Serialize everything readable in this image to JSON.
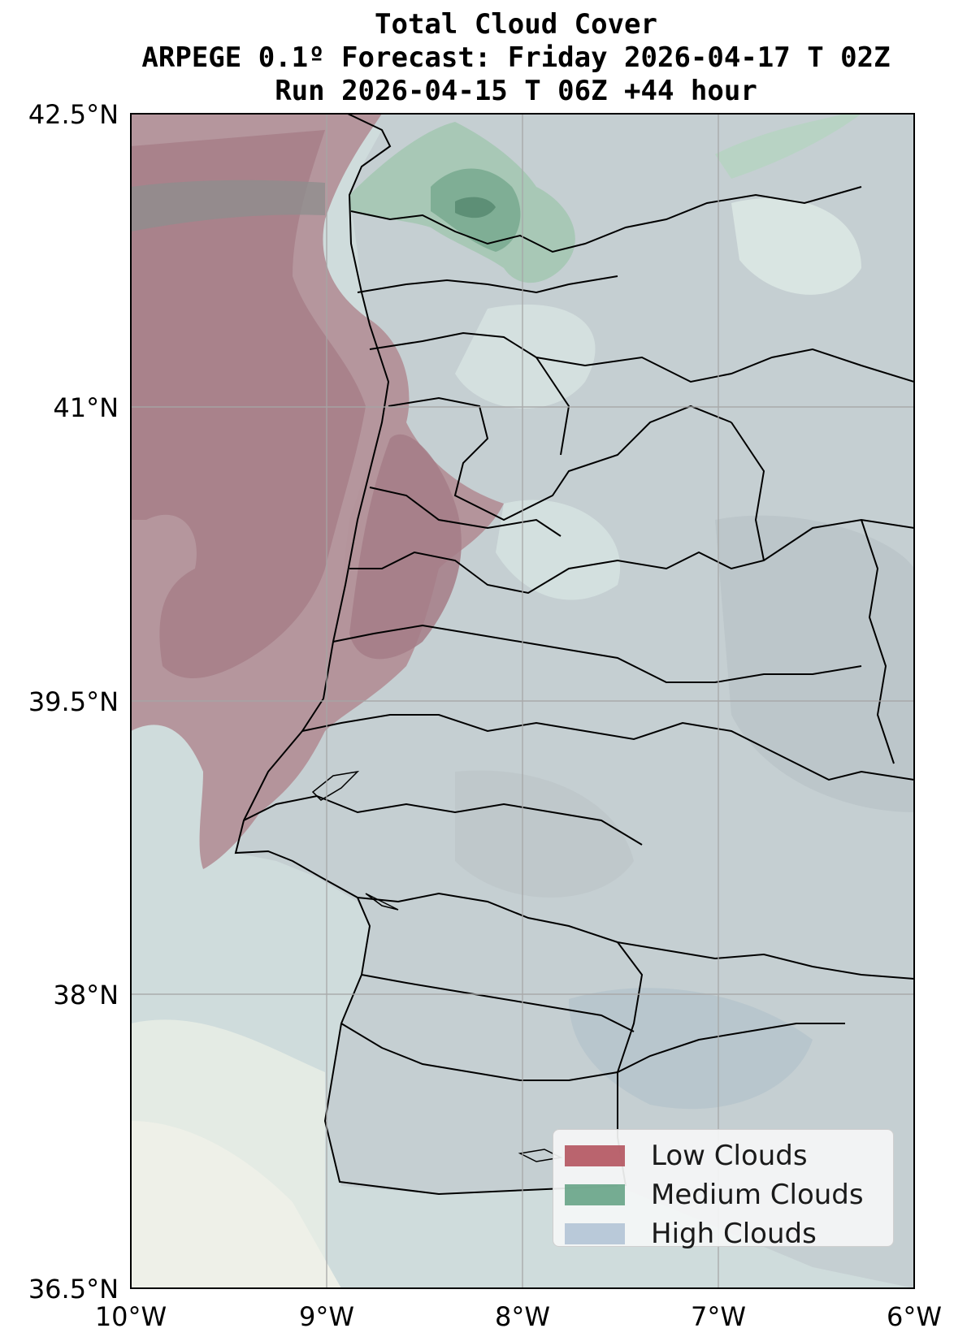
{
  "title": {
    "line1": "Total Cloud Cover",
    "line2": "ARPEGE 0.1º Forecast: Friday 2026-04-17 T 02Z",
    "line3": "Run 2026-04-15 T 06Z +44 hour"
  },
  "map": {
    "lon_range": [
      -10,
      -6
    ],
    "lat_range": [
      36.5,
      42.5
    ],
    "x_ticks": [
      {
        "lon": -10,
        "label": "10°W"
      },
      {
        "lon": -9,
        "label": "9°W"
      },
      {
        "lon": -8,
        "label": "8°W"
      },
      {
        "lon": -7,
        "label": "7°W"
      },
      {
        "lon": -6,
        "label": "6°W"
      }
    ],
    "y_ticks": [
      {
        "lat": 42.5,
        "label": "42.5°N"
      },
      {
        "lat": 41,
        "label": "41°N"
      },
      {
        "lat": 39.5,
        "label": "39.5°N"
      },
      {
        "lat": 38,
        "label": "38°N"
      },
      {
        "lat": 36.5,
        "label": "36.5°N"
      }
    ],
    "grid": true
  },
  "legend": {
    "placement": "lower-right",
    "items": [
      {
        "label": "Low Clouds",
        "color": "#b4545f"
      },
      {
        "label": "Medium Clouds",
        "color": "#5f9f80"
      },
      {
        "label": "High Clouds",
        "color": "#b9c9d9"
      }
    ]
  }
}
